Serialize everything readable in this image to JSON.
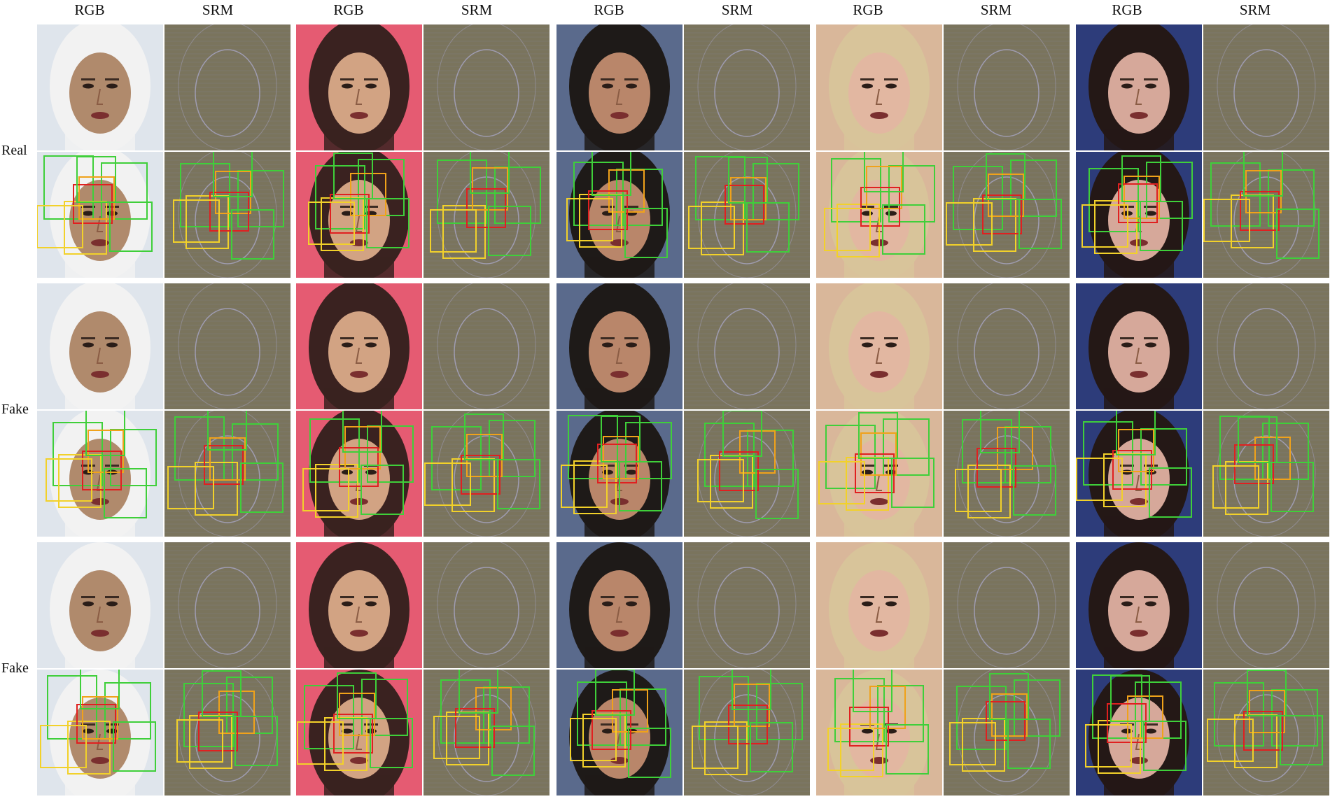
{
  "column_headers": [
    "RGB",
    "SRM",
    "RGB",
    "SRM",
    "RGB",
    "SRM",
    "RGB",
    "SRM",
    "RGB",
    "SRM"
  ],
  "row_labels": [
    "Real",
    "Fake",
    "Fake"
  ],
  "legend_colors": {
    "green": "#3fcf3a",
    "yellow": "#f2d12a",
    "orange": "#f0a21a",
    "red": "#e02020"
  },
  "subject_palettes": [
    {
      "bg": "#dfe5ec",
      "skin": "#b08a6c",
      "hair": "#f2f2f2"
    },
    {
      "bg": "#e55b72",
      "skin": "#d2a383",
      "hair": "#3a2220"
    },
    {
      "bg": "#5a6a8c",
      "skin": "#b9866a",
      "hair": "#1e1a18"
    },
    {
      "bg": "#d9b79a",
      "skin": "#e2b7a1",
      "hair": "#d8c49a"
    },
    {
      "bg": "#2d3c7a",
      "skin": "#d6a89a",
      "hair": "#241816"
    }
  ],
  "srm_color": "#7a745d"
}
